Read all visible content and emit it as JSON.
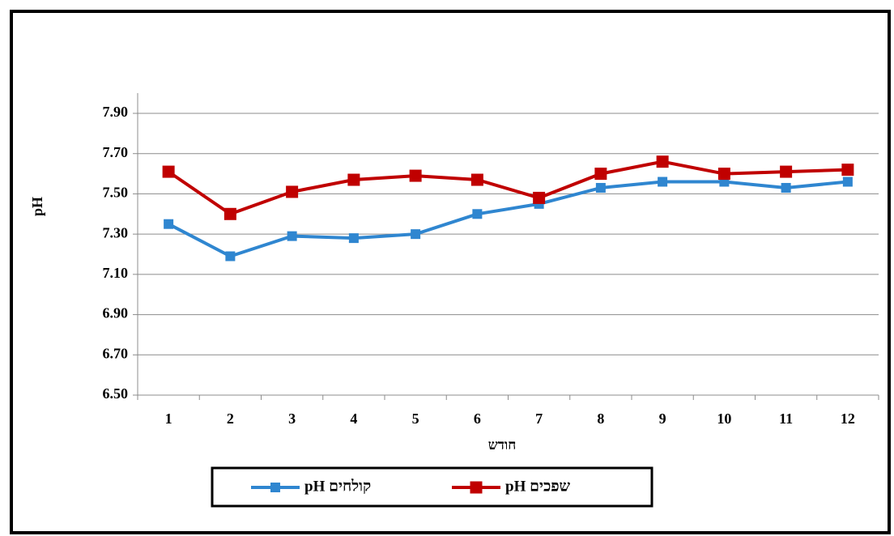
{
  "chart_data": {
    "type": "line",
    "y_label": "pH",
    "x_label": "חודש",
    "categories": [
      "1",
      "2",
      "3",
      "4",
      "5",
      "6",
      "7",
      "8",
      "9",
      "10",
      "11",
      "12"
    ],
    "series": [
      {
        "name": "pH קולחים",
        "color": "#2f86d0",
        "values": [
          7.35,
          7.19,
          7.29,
          7.28,
          7.3,
          7.4,
          7.45,
          7.53,
          7.56,
          7.56,
          7.53,
          7.56
        ]
      },
      {
        "name": "pH שפכים",
        "color": "#c00000",
        "values": [
          7.61,
          7.4,
          7.51,
          7.57,
          7.59,
          7.57,
          7.48,
          7.6,
          7.66,
          7.6,
          7.61,
          7.62
        ]
      }
    ],
    "ylim": [
      6.5,
      7.9
    ],
    "yticks": [
      {
        "value": 6.5,
        "label": "6.50"
      },
      {
        "value": 6.7,
        "label": "6.70"
      },
      {
        "value": 6.9,
        "label": "6.90"
      },
      {
        "value": 7.1,
        "label": "7.10"
      },
      {
        "value": 7.3,
        "label": "7.30"
      },
      {
        "value": 7.5,
        "label": "7.50"
      },
      {
        "value": 7.7,
        "label": "7.70"
      },
      {
        "value": 7.9,
        "label": "7.90"
      }
    ],
    "grid": true
  }
}
